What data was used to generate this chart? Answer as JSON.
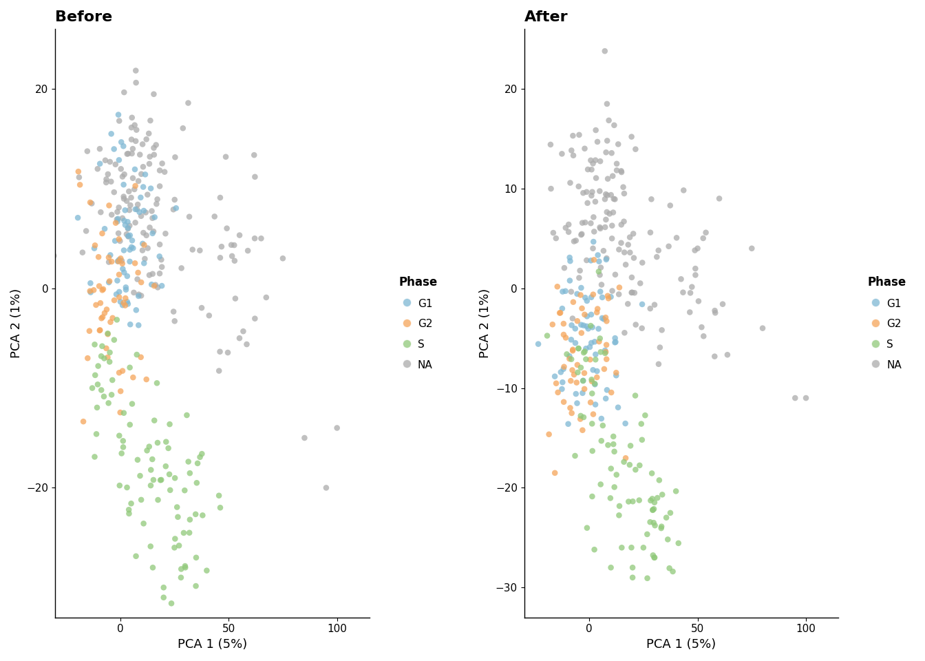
{
  "title_before": "Before",
  "title_after": "After",
  "xlabel": "PCA 1 (5%)",
  "ylabel": "PCA 2 (1%)",
  "legend_title": "Phase",
  "phases": [
    "G1",
    "G2",
    "S",
    "NA"
  ],
  "colors": {
    "G1": "#7EB8D4",
    "G2": "#F5A55A",
    "S": "#90C97A",
    "NA": "#ABABAB"
  },
  "alpha": 0.75,
  "point_size": 38,
  "before": {
    "xlim": [
      -30,
      115
    ],
    "ylim": [
      -33,
      26
    ],
    "xticks": [
      0,
      50,
      100
    ],
    "yticks": [
      -20,
      0,
      20
    ]
  },
  "after": {
    "xlim": [
      -30,
      115
    ],
    "ylim": [
      -33,
      26
    ],
    "xticks": [
      0,
      50,
      100
    ],
    "yticks": [
      -30,
      -20,
      -10,
      0,
      10,
      20
    ]
  }
}
